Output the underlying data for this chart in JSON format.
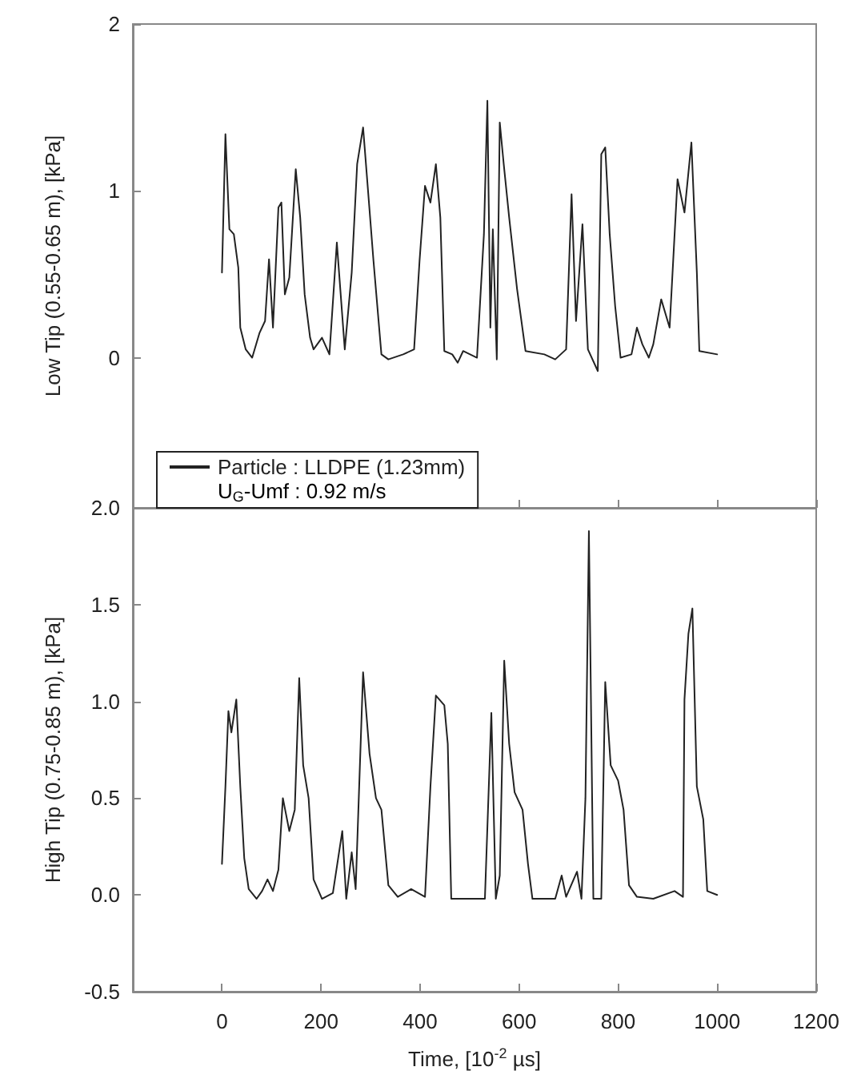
{
  "chart_data": [
    {
      "type": "line",
      "ylabel": "Low Tip (0.55-0.65 m), [kPa]",
      "xlim": [
        -180,
        1200
      ],
      "xticks": [
        0,
        200,
        400,
        600,
        800,
        1000,
        1200
      ],
      "ylim": [
        -0.9,
        2
      ],
      "yticks": [
        0,
        1,
        2
      ],
      "tick_labels": "y",
      "legend": "bottom left",
      "marker": "none",
      "line_style": "solid",
      "grid": false,
      "annotations": [
        "U$_{G}$-Umf : 0.92 m/s"
      ],
      "series": [
        {
          "name": "Particle : LLDPE (1.23mm)",
          "color": "#222222",
          "x": [
            0,
            7,
            15,
            24,
            33,
            37,
            48,
            61,
            76,
            87,
            95,
            103,
            114,
            120,
            127,
            136,
            149,
            158,
            167,
            178,
            185,
            202,
            217,
            232,
            248,
            262,
            273,
            285,
            295,
            306,
            322,
            336,
            366,
            388,
            399,
            410,
            421,
            432,
            441,
            449,
            465,
            476,
            487,
            515,
            529,
            536,
            542,
            547,
            555,
            561,
            569,
            580,
            596,
            613,
            651,
            673,
            695,
            706,
            715,
            728,
            739,
            759,
            766,
            774,
            783,
            794,
            805,
            827,
            838,
            849,
            862,
            871,
            887,
            904,
            920,
            934,
            948,
            959,
            964,
            1000
          ],
          "values": [
            0.51,
            1.34,
            0.77,
            0.74,
            0.54,
            0.18,
            0.05,
            0.0,
            0.15,
            0.22,
            0.59,
            0.18,
            0.9,
            0.93,
            0.38,
            0.48,
            1.13,
            0.84,
            0.38,
            0.12,
            0.05,
            0.12,
            0.02,
            0.69,
            0.05,
            0.51,
            1.16,
            1.38,
            1.0,
            0.58,
            0.02,
            -0.01,
            0.02,
            0.05,
            0.58,
            1.03,
            0.93,
            1.16,
            0.84,
            0.04,
            0.02,
            -0.03,
            0.04,
            0.0,
            0.74,
            1.54,
            0.18,
            0.77,
            -0.01,
            1.41,
            1.16,
            0.84,
            0.41,
            0.04,
            0.02,
            -0.01,
            0.05,
            0.98,
            0.22,
            0.8,
            0.05,
            -0.08,
            1.22,
            1.26,
            0.74,
            0.31,
            0.0,
            0.02,
            0.18,
            0.08,
            0.0,
            0.08,
            0.35,
            0.18,
            1.07,
            0.87,
            1.29,
            0.51,
            0.04,
            0.02
          ]
        }
      ]
    },
    {
      "type": "line",
      "xlabel": "Time, [10$^{-2}$ µs]",
      "ylabel": "High Tip (0.75-0.85 m), [kPa]",
      "xlim": [
        -180,
        1200
      ],
      "xticks": [
        0,
        200,
        400,
        600,
        800,
        1000,
        1200
      ],
      "ylim": [
        -0.5,
        2.0
      ],
      "yticks": [
        -0.5,
        {
          "value": 0,
          "label": "0.0"
        },
        0.5,
        {
          "value": 1,
          "label": "1.0"
        },
        1.5,
        {
          "value": 2,
          "label": "2.0"
        }
      ],
      "marker": "none",
      "line_style": "solid",
      "grid": false,
      "series": [
        {
          "color": "#222222",
          "x": [
            0,
            7,
            13,
            19,
            29,
            37,
            45,
            54,
            70,
            81,
            92,
            103,
            114,
            123,
            136,
            147,
            156,
            164,
            175,
            185,
            202,
            224,
            243,
            251,
            262,
            270,
            285,
            298,
            311,
            322,
            336,
            355,
            382,
            410,
            421,
            432,
            449,
            456,
            463,
            487,
            531,
            544,
            553,
            561,
            570,
            580,
            591,
            607,
            618,
            627,
            673,
            686,
            695,
            717,
            726,
            734,
            741,
            750,
            766,
            774,
            785,
            800,
            811,
            822,
            838,
            871,
            914,
            931,
            934,
            942,
            950,
            959,
            972,
            980,
            1000
          ],
          "values": [
            0.16,
            0.56,
            0.95,
            0.84,
            1.01,
            0.56,
            0.19,
            0.03,
            -0.02,
            0.02,
            0.08,
            0.02,
            0.13,
            0.5,
            0.33,
            0.44,
            1.12,
            0.67,
            0.5,
            0.08,
            -0.02,
            0.01,
            0.33,
            -0.02,
            0.22,
            0.03,
            1.15,
            0.73,
            0.5,
            0.44,
            0.05,
            -0.01,
            0.03,
            -0.01,
            0.56,
            1.03,
            0.98,
            0.78,
            -0.02,
            -0.02,
            -0.02,
            0.94,
            -0.02,
            0.1,
            1.21,
            0.78,
            0.53,
            0.44,
            0.16,
            -0.02,
            -0.02,
            0.1,
            -0.01,
            0.12,
            -0.02,
            0.5,
            1.88,
            -0.02,
            -0.02,
            1.1,
            0.67,
            0.59,
            0.44,
            0.05,
            -0.01,
            -0.02,
            0.02,
            -0.01,
            1.01,
            1.35,
            1.48,
            0.56,
            0.39,
            0.02,
            0.0
          ]
        }
      ]
    }
  ]
}
